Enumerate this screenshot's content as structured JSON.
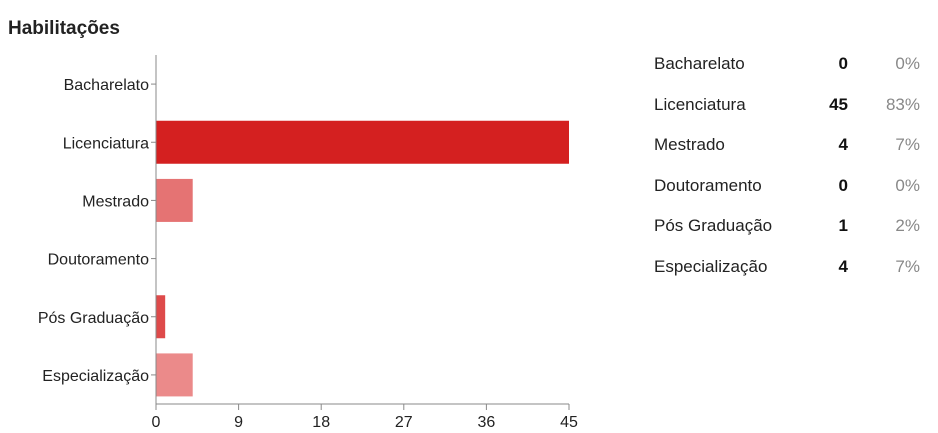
{
  "title": "Habilitações",
  "chart_data": {
    "type": "bar",
    "orientation": "horizontal",
    "categories": [
      "Bacharelato",
      "Licenciatura",
      "Mestrado",
      "Doutoramento",
      "Pós Graduação",
      "Especialização"
    ],
    "values": [
      0,
      45,
      4,
      0,
      1,
      4
    ],
    "xticks": [
      0,
      9,
      18,
      27,
      36,
      45
    ],
    "xlim": [
      0,
      45
    ],
    "colors": [
      "#d42020",
      "#d42020",
      "#e57373",
      "#d42020",
      "#de4a4a",
      "#eb8a8a"
    ]
  },
  "summary": [
    {
      "label": "Bacharelato",
      "count": "0",
      "percent": "0%"
    },
    {
      "label": "Licenciatura",
      "count": "45",
      "percent": "83%"
    },
    {
      "label": "Mestrado",
      "count": "4",
      "percent": "7%"
    },
    {
      "label": "Doutoramento",
      "count": "0",
      "percent": "0%"
    },
    {
      "label": "Pós Graduação",
      "count": "1",
      "percent": "2%"
    },
    {
      "label": "Especialização",
      "count": "4",
      "percent": "7%"
    }
  ]
}
